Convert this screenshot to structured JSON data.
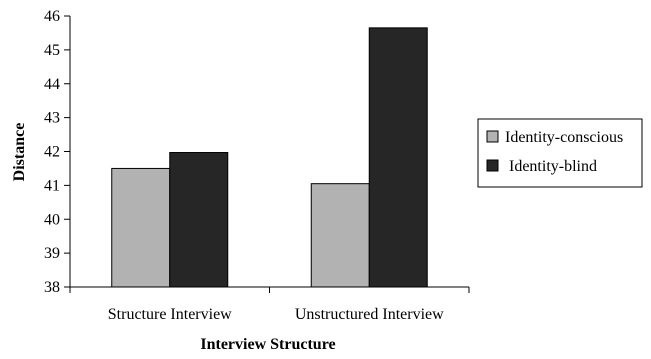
{
  "chart_data": {
    "type": "bar",
    "title": "",
    "xlabel": "Interview Structure",
    "ylabel": "Distance",
    "categories": [
      "Structure Interview",
      "Unstructured Interview"
    ],
    "series": [
      {
        "name": "Identity-conscious",
        "values": [
          41.5,
          41.05
        ],
        "color": "#b2b2b2"
      },
      {
        "name": "Identity-blind",
        "values": [
          41.97,
          45.65
        ],
        "color": "#262626"
      }
    ],
    "ylim": [
      38,
      46
    ],
    "yticks": [
      38,
      39,
      40,
      41,
      42,
      43,
      44,
      45,
      46
    ],
    "grid": false,
    "legend_position": "right"
  }
}
